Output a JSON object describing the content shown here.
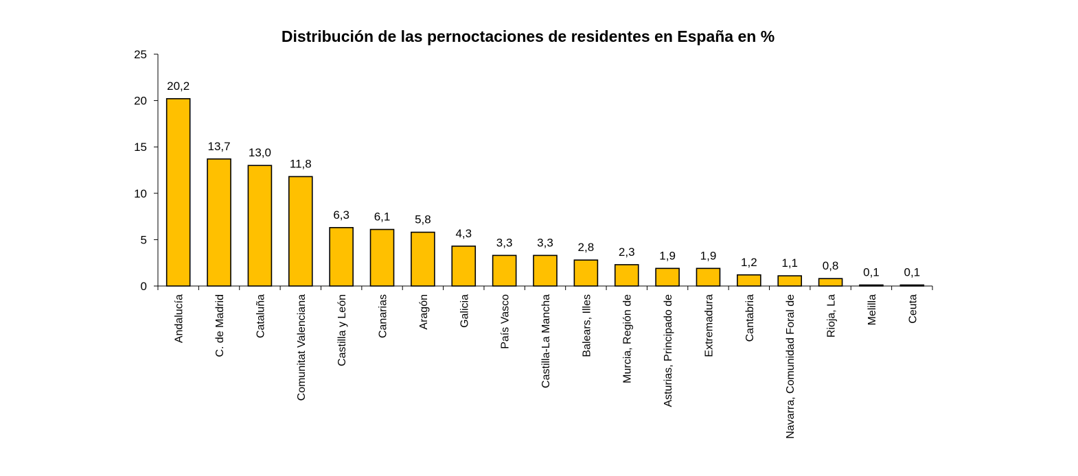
{
  "chart_data": {
    "type": "bar",
    "title": "Distribución de las pernoctaciones de residentes en España en %",
    "categories": [
      "Andalucía",
      "C. de Madrid",
      "Cataluña",
      "Comunitat Valenciana",
      "Castilla y León",
      "Canarias",
      "Aragón",
      "Galicia",
      "País Vasco",
      "Castilla-La Mancha",
      "Balears, Illes",
      "Murcia, Región de",
      "Asturias, Principado de",
      "Extremadura",
      "Cantabria",
      "Navarra, Comunidad Foral de",
      "Rioja, La",
      "Melilla",
      "Ceuta"
    ],
    "values": [
      20.2,
      13.7,
      13.0,
      11.8,
      6.3,
      6.1,
      5.8,
      4.3,
      3.3,
      3.3,
      2.8,
      2.3,
      1.9,
      1.9,
      1.2,
      1.1,
      0.8,
      0.1,
      0.1
    ],
    "value_labels": [
      "20,2",
      "13,7",
      "13,0",
      "11,8",
      "6,3",
      "6,1",
      "5,8",
      "4,3",
      "3,3",
      "3,3",
      "2,8",
      "2,3",
      "1,9",
      "1,9",
      "1,2",
      "1,1",
      "0,8",
      "0,1",
      "0,1"
    ],
    "y_ticks": [
      0,
      5,
      10,
      15,
      20,
      25
    ],
    "ylim": [
      0,
      25
    ],
    "xlabel": "",
    "ylabel": "",
    "grid": false,
    "legend": "none",
    "bar_color": "#FFC000",
    "bar_border_color": "#000000"
  }
}
